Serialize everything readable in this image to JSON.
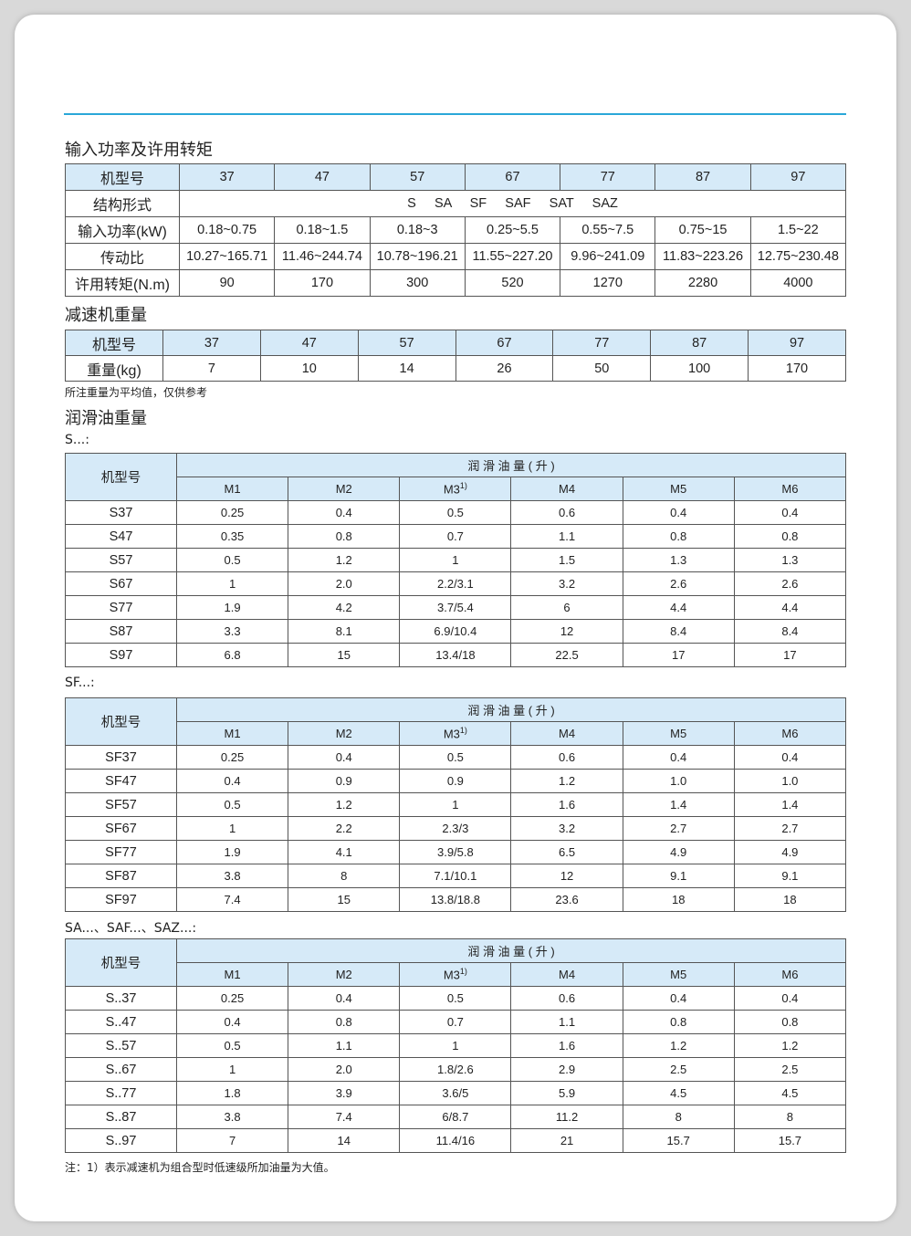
{
  "section1": {
    "title": "输入功率及许用转矩",
    "header": [
      "机型号",
      "37",
      "47",
      "57",
      "67",
      "77",
      "87",
      "97"
    ],
    "structure_label": "结构形式",
    "structure_value": "S     SA     SF     SAF     SAT     SAZ",
    "rows": [
      [
        "输入功率(kW)",
        "0.18~0.75",
        "0.18~1.5",
        "0.18~3",
        "0.25~5.5",
        "0.55~7.5",
        "0.75~15",
        "1.5~22"
      ],
      [
        "传动比",
        "10.27~165.71",
        "11.46~244.74",
        "10.78~196.21",
        "11.55~227.20",
        "9.96~241.09",
        "11.83~223.26",
        "12.75~230.48"
      ],
      [
        "许用转矩(N.m)",
        "90",
        "170",
        "300",
        "520",
        "1270",
        "2280",
        "4000"
      ]
    ]
  },
  "section2": {
    "title": "减速机重量",
    "header": [
      "机型号",
      "37",
      "47",
      "57",
      "67",
      "77",
      "87",
      "97"
    ],
    "row": [
      "重量(kg)",
      "7",
      "10",
      "14",
      "26",
      "50",
      "100",
      "170"
    ],
    "note": "所注重量为平均值，仅供参考"
  },
  "section3": {
    "title": "润滑油重量",
    "model_label": "机型号",
    "group_label": "润 滑 油 量 ( 升 )",
    "columns": [
      "M1",
      "M2",
      "M3",
      "M4",
      "M5",
      "M6"
    ],
    "m3_sup": "1)",
    "tables": [
      {
        "label": "S...:",
        "rows": [
          [
            "S37",
            "0.25",
            "0.4",
            "0.5",
            "0.6",
            "0.4",
            "0.4"
          ],
          [
            "S47",
            "0.35",
            "0.8",
            "0.7",
            "1.1",
            "0.8",
            "0.8"
          ],
          [
            "S57",
            "0.5",
            "1.2",
            "1",
            "1.5",
            "1.3",
            "1.3"
          ],
          [
            "S67",
            "1",
            "2.0",
            "2.2/3.1",
            "3.2",
            "2.6",
            "2.6"
          ],
          [
            "S77",
            "1.9",
            "4.2",
            "3.7/5.4",
            "6",
            "4.4",
            "4.4"
          ],
          [
            "S87",
            "3.3",
            "8.1",
            "6.9/10.4",
            "12",
            "8.4",
            "8.4"
          ],
          [
            "S97",
            "6.8",
            "15",
            "13.4/18",
            "22.5",
            "17",
            "17"
          ]
        ]
      },
      {
        "label": "SF...:",
        "rows": [
          [
            "SF37",
            "0.25",
            "0.4",
            "0.5",
            "0.6",
            "0.4",
            "0.4"
          ],
          [
            "SF47",
            "0.4",
            "0.9",
            "0.9",
            "1.2",
            "1.0",
            "1.0"
          ],
          [
            "SF57",
            "0.5",
            "1.2",
            "1",
            "1.6",
            "1.4",
            "1.4"
          ],
          [
            "SF67",
            "1",
            "2.2",
            "2.3/3",
            "3.2",
            "2.7",
            "2.7"
          ],
          [
            "SF77",
            "1.9",
            "4.1",
            "3.9/5.8",
            "6.5",
            "4.9",
            "4.9"
          ],
          [
            "SF87",
            "3.8",
            "8",
            "7.1/10.1",
            "12",
            "9.1",
            "9.1"
          ],
          [
            "SF97",
            "7.4",
            "15",
            "13.8/18.8",
            "23.6",
            "18",
            "18"
          ]
        ]
      },
      {
        "label": "SA...、SAF...、SAZ...:",
        "rows": [
          [
            "S..37",
            "0.25",
            "0.4",
            "0.5",
            "0.6",
            "0.4",
            "0.4"
          ],
          [
            "S..47",
            "0.4",
            "0.8",
            "0.7",
            "1.1",
            "0.8",
            "0.8"
          ],
          [
            "S..57",
            "0.5",
            "1.1",
            "1",
            "1.6",
            "1.2",
            "1.2"
          ],
          [
            "S..67",
            "1",
            "2.0",
            "1.8/2.6",
            "2.9",
            "2.5",
            "2.5"
          ],
          [
            "S..77",
            "1.8",
            "3.9",
            "3.6/5",
            "5.9",
            "4.5",
            "4.5"
          ],
          [
            "S..87",
            "3.8",
            "7.4",
            "6/8.7",
            "11.2",
            "8",
            "8"
          ],
          [
            "S..97",
            "7",
            "14",
            "11.4/16",
            "21",
            "15.7",
            "15.7"
          ]
        ]
      }
    ],
    "footnote": "注：1）表示减速机为组合型时低速级所加油量为大值。"
  },
  "colors": {
    "accent_line": "#2aa7d8",
    "header_fill": "#d6eaf8"
  }
}
